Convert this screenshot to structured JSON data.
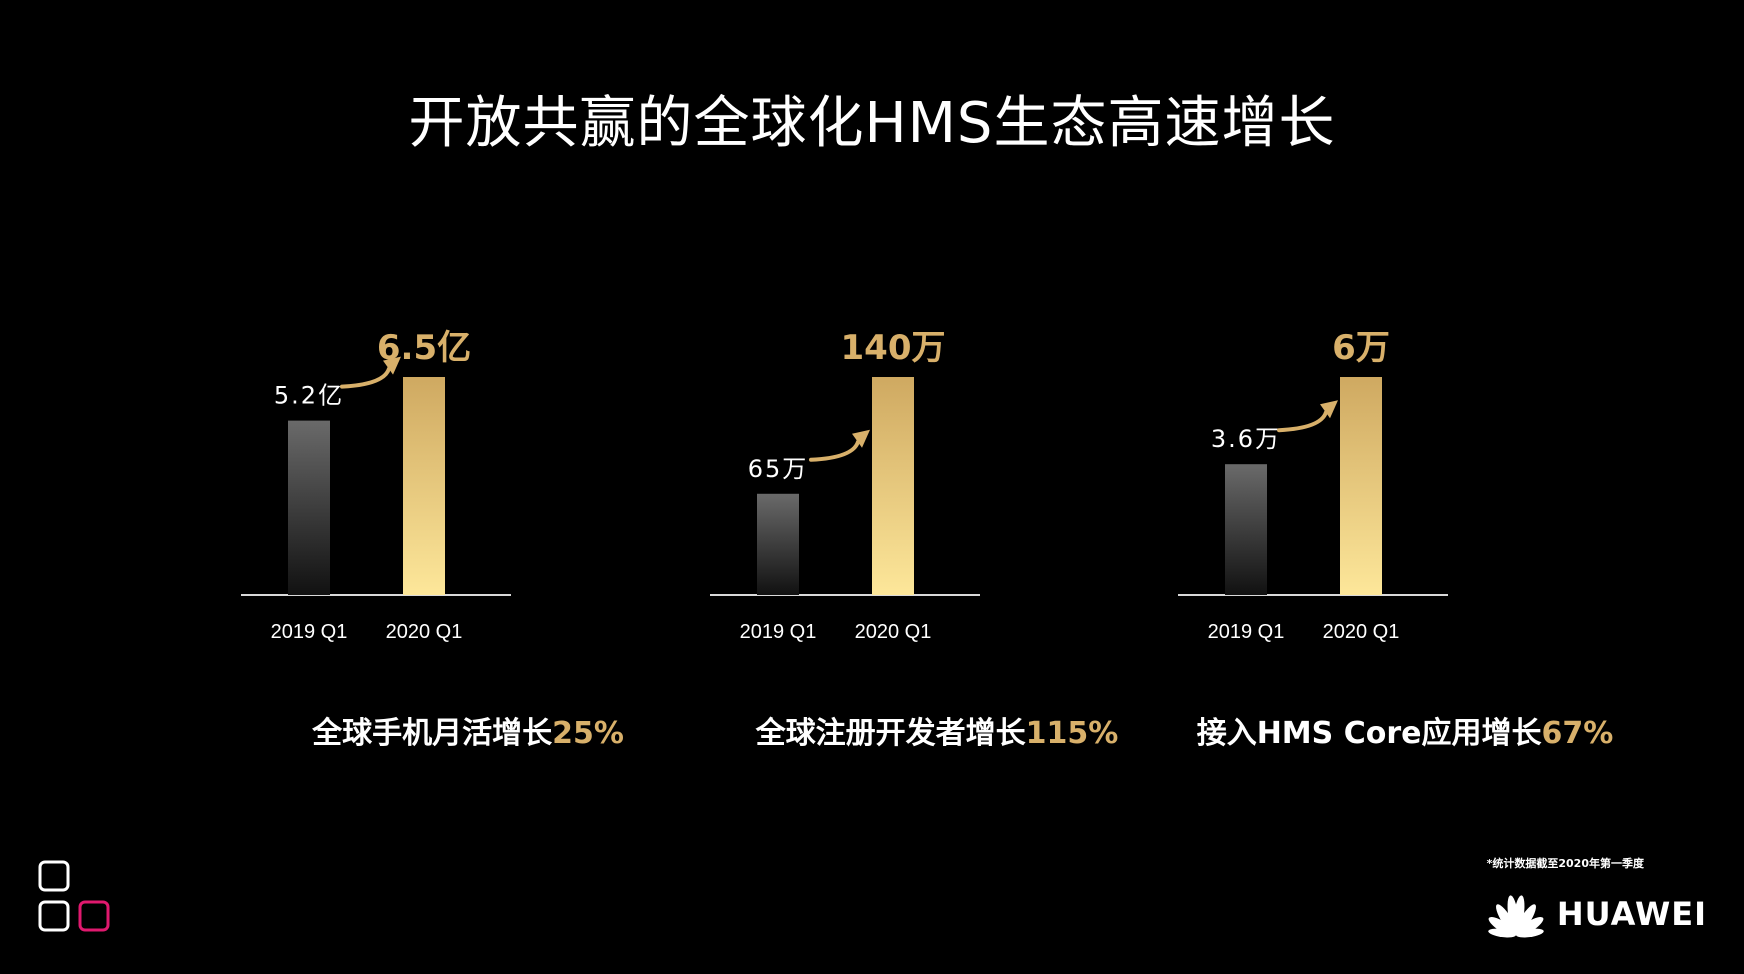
{
  "title": "开放共赢的全球化HMS生态高速增长",
  "colors": {
    "accent": "#d8b06a",
    "gold_top": "#cfa961",
    "gold_bottom": "#fde79a",
    "gray_top": "#6a6a6a",
    "gray_bottom": "#111111",
    "background": "#000000"
  },
  "panels": [
    {
      "caption_text": "全球手机月活增长",
      "caption_pct": "25%"
    },
    {
      "caption_text": "全球注册开发者增长",
      "caption_pct": "115%"
    },
    {
      "caption_text": "接入HMS Core应用增长",
      "caption_pct": "67%"
    }
  ],
  "chart_data": [
    {
      "type": "bar",
      "categories": [
        "2019 Q1",
        "2020 Q1"
      ],
      "values": [
        5.2,
        6.5
      ],
      "unit": "亿",
      "data_labels": [
        "5.2亿",
        "6.5亿"
      ],
      "title": "",
      "xlabel": "",
      "ylabel": ""
    },
    {
      "type": "bar",
      "categories": [
        "2019 Q1",
        "2020 Q1"
      ],
      "values": [
        65,
        140
      ],
      "unit": "万",
      "data_labels": [
        "65万",
        "140万"
      ],
      "title": "",
      "xlabel": "",
      "ylabel": ""
    },
    {
      "type": "bar",
      "categories": [
        "2019 Q1",
        "2020 Q1"
      ],
      "values": [
        3.6,
        6
      ],
      "unit": "万",
      "data_labels": [
        "3.6万",
        "6万"
      ],
      "title": "",
      "xlabel": "",
      "ylabel": ""
    }
  ],
  "footnote": "*统计数据截至2020年第一季度",
  "brand": {
    "name": "HUAWEI",
    "icon": "huawei-petal-logo-icon"
  },
  "corner_icon": "app-grid-squares-icon"
}
